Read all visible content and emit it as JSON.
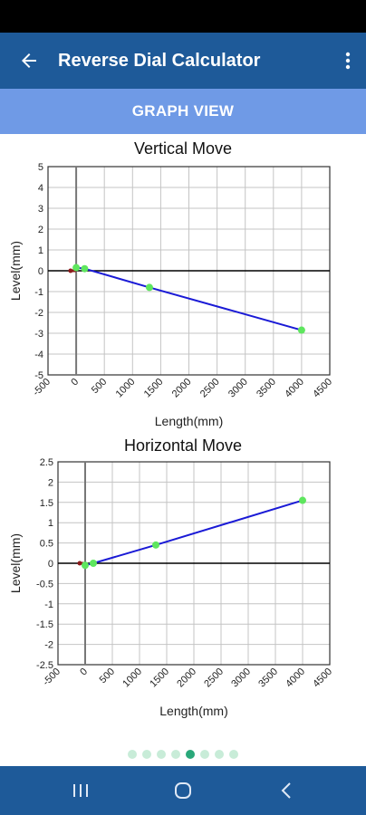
{
  "app_bar": {
    "title": "Reverse Dial Calculator"
  },
  "section": {
    "label": "GRAPH VIEW"
  },
  "colors": {
    "app_bar": "#1e5a99",
    "section_bar": "#6f9ae6",
    "line": "#1a1ad6",
    "point": "#5ee65e",
    "origin_segment": "#8b1a1a",
    "indicator_active": "#2aa87a",
    "indicator_inactive": "#c8ecd8"
  },
  "icons": {
    "back": "arrow-left-icon",
    "menu": "more-vert-icon",
    "recents": "recents-icon",
    "home": "home-icon",
    "nav_back": "chevron-left-icon"
  },
  "chart_data": [
    {
      "type": "line",
      "title": "Vertical  Move",
      "xlabel": "Length(mm)",
      "ylabel": "Level(mm)",
      "xlim": [
        -500,
        4500
      ],
      "ylim": [
        -5,
        5
      ],
      "x_ticks": [
        "-500",
        "0",
        "500",
        "1000",
        "1500",
        "2000",
        "2500",
        "3000",
        "3500",
        "4000",
        "4500"
      ],
      "y_ticks": [
        "5",
        "4",
        "3",
        "2",
        "1",
        "0",
        "-1",
        "-2",
        "-3",
        "-4",
        "-5"
      ],
      "origin_segment": {
        "x": [
          -100,
          0
        ],
        "y": [
          0,
          0
        ]
      },
      "series": [
        {
          "x": [
            0,
            150,
            1300,
            4000
          ],
          "y": [
            0.15,
            0.1,
            -0.8,
            -2.85
          ]
        }
      ]
    },
    {
      "type": "line",
      "title": "Horizontal Move",
      "xlabel": "Length(mm)",
      "ylabel": "Level(mm)",
      "xlim": [
        -500,
        4500
      ],
      "ylim": [
        -2.5,
        2.5
      ],
      "x_ticks": [
        "-500",
        "0",
        "500",
        "1000",
        "1500",
        "2000",
        "2500",
        "3000",
        "3500",
        "4000",
        "4500"
      ],
      "y_ticks": [
        "2.5",
        "2",
        "1.5",
        "1",
        "0.5",
        "0",
        "-0.5",
        "-1",
        "-1.5",
        "-2",
        "-2.5"
      ],
      "origin_segment": {
        "x": [
          -100,
          0
        ],
        "y": [
          0,
          0
        ]
      },
      "series": [
        {
          "x": [
            0,
            150,
            1300,
            4000
          ],
          "y": [
            -0.05,
            0.0,
            0.45,
            1.55
          ]
        }
      ]
    }
  ],
  "pager": {
    "count": 8,
    "active": 4
  }
}
